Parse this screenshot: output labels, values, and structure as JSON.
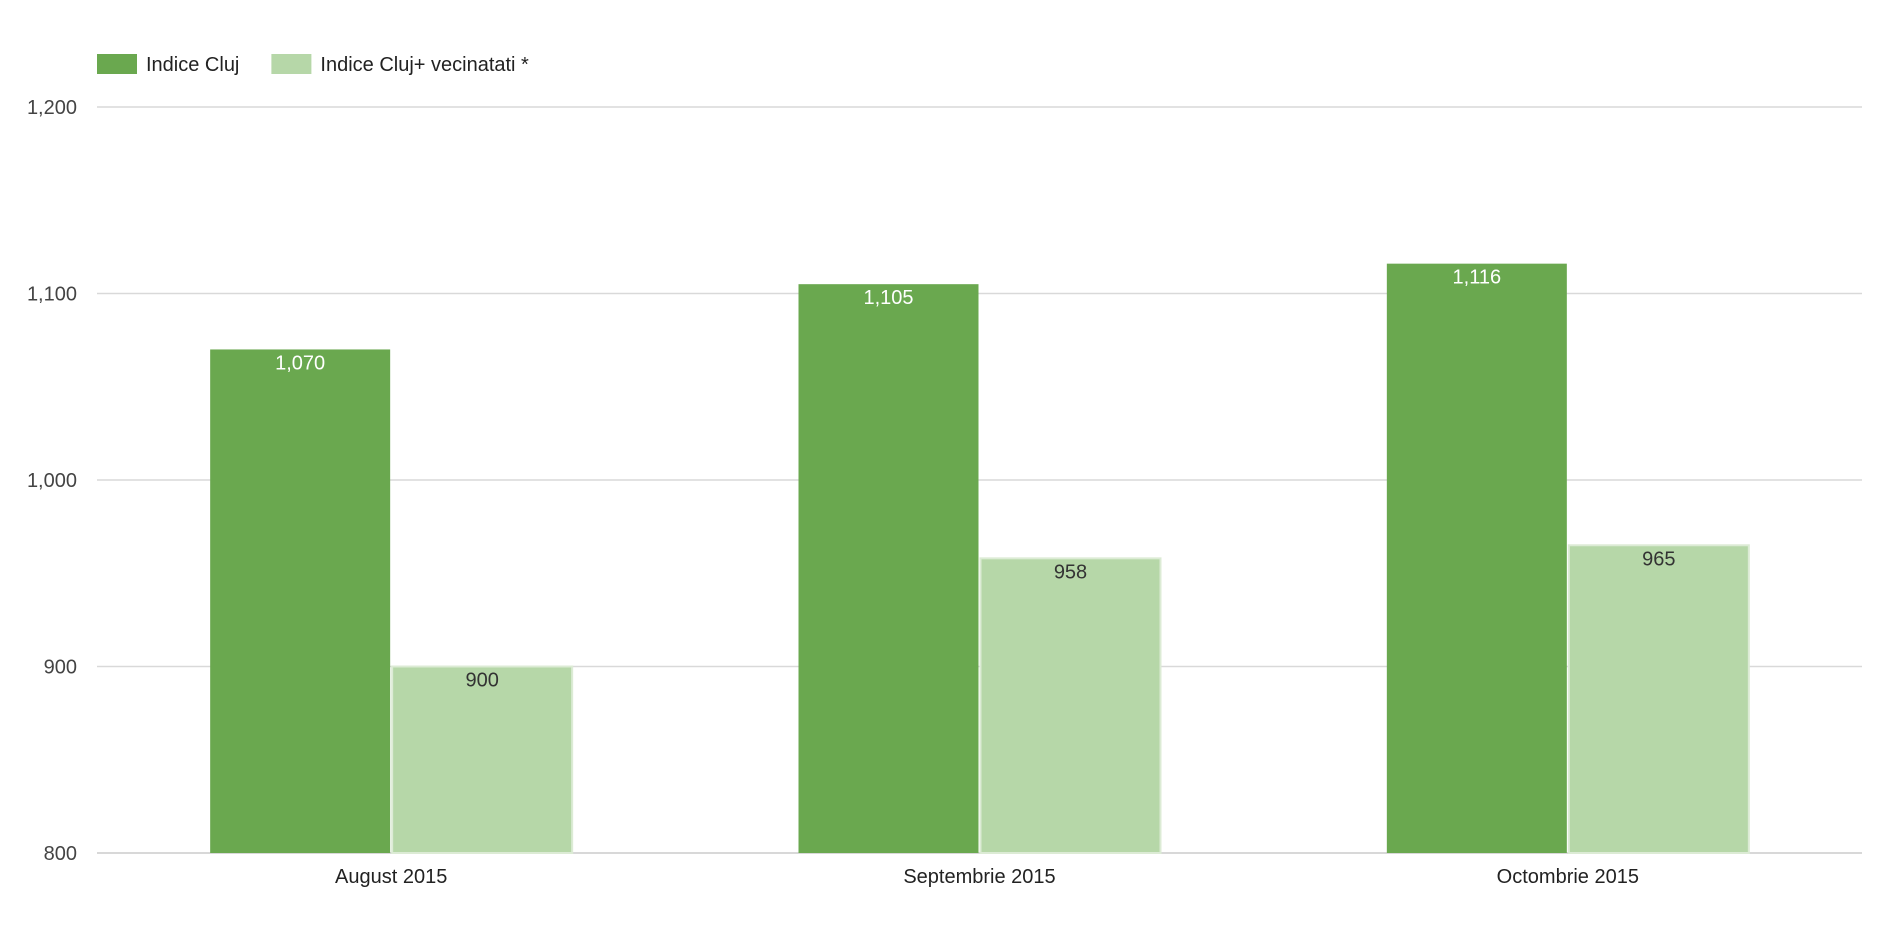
{
  "chart_data": {
    "type": "bar",
    "categories": [
      "August 2015",
      "Septembrie 2015",
      "Octombrie 2015"
    ],
    "series": [
      {
        "name": "Indice Cluj",
        "values": [
          1070,
          1105,
          1116
        ],
        "labels": [
          "1,070",
          "1,105",
          "1,116"
        ],
        "color": "#6aa84f",
        "label_color": "#ffffff"
      },
      {
        "name": "Indice Cluj+ vecinatati *",
        "values": [
          900,
          958,
          965
        ],
        "labels": [
          "900",
          "958",
          "965"
        ],
        "color": "#b6d7a8",
        "label_color": "#333333"
      }
    ],
    "ylim": [
      800,
      1200
    ],
    "yticks": [
      800,
      900,
      1000,
      1100,
      1200
    ],
    "ytick_labels": [
      "800",
      "900",
      "1,000",
      "1,100",
      "1,200"
    ],
    "grid": true,
    "legend_position": "top-left",
    "title": "",
    "xlabel": "",
    "ylabel": ""
  }
}
